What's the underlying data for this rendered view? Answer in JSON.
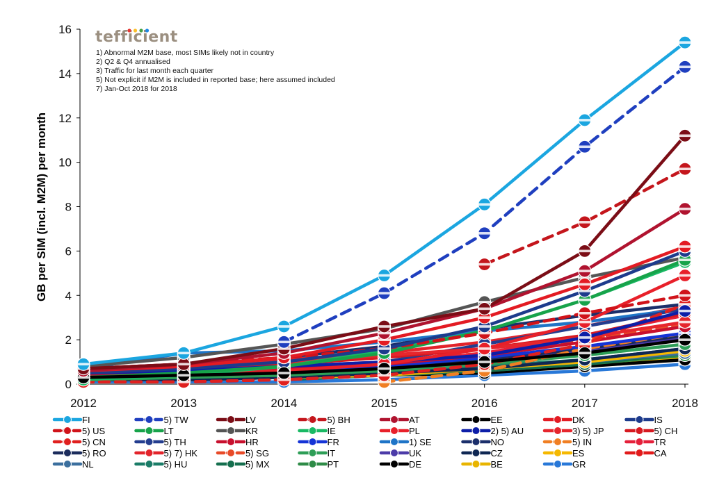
{
  "brand": {
    "name": "tefficient",
    "dot_colors": [
      "#e53935",
      "#fbc02d",
      "#43a047",
      "#1e88e5"
    ]
  },
  "notes": [
    "1) Abnormal M2M base, most SIMs likely not in country",
    "2) Q2 & Q4 annualised",
    "3) Traffic for last month each quarter",
    "5) Not explicit if M2M is included in reported base; here assumed included",
    "7) Jan-Oct 2018 for 2018"
  ],
  "chart_data": {
    "type": "line",
    "title": "",
    "xlabel": "",
    "ylabel": "GB per SIM (incl. M2M) per month",
    "x": [
      "2012",
      "2013",
      "2014",
      "2015",
      "2016",
      "2017",
      "2018"
    ],
    "ylim": [
      0,
      16
    ],
    "yticks": [
      0,
      2,
      4,
      6,
      8,
      10,
      12,
      14,
      16
    ],
    "grid": false,
    "legend_position": "bottom",
    "series": [
      {
        "name": "FI",
        "color": "#1ba6e0",
        "dashed": false,
        "values": [
          0.9,
          1.4,
          2.6,
          4.9,
          8.1,
          11.9,
          15.4
        ]
      },
      {
        "name": "5) TW",
        "color": "#1f3fbf",
        "dashed": true,
        "values": [
          null,
          null,
          1.9,
          4.1,
          6.8,
          10.7,
          14.3
        ]
      },
      {
        "name": "LV",
        "color": "#7b0d16",
        "dashed": false,
        "values": [
          0.7,
          0.9,
          1.6,
          2.6,
          3.4,
          6.0,
          11.2
        ]
      },
      {
        "name": "5) BH",
        "color": "#c4161c",
        "dashed": true,
        "values": [
          null,
          null,
          null,
          null,
          5.4,
          7.3,
          9.7
        ]
      },
      {
        "name": "AT",
        "color": "#b0132f",
        "dashed": false,
        "values": [
          0.6,
          0.9,
          1.4,
          2.3,
          3.4,
          5.1,
          7.9
        ]
      },
      {
        "name": "EE",
        "color": "#000000",
        "dashed": false,
        "values": [
          0.3,
          0.4,
          0.5,
          0.7,
          1.0,
          1.4,
          2.0
        ]
      },
      {
        "name": "DK",
        "color": "#e31b23",
        "dashed": false,
        "values": [
          0.6,
          0.8,
          1.2,
          2.0,
          3.0,
          4.5,
          6.2
        ]
      },
      {
        "name": "IS",
        "color": "#1d3b8c",
        "dashed": false,
        "values": [
          0.5,
          0.7,
          1.0,
          1.6,
          2.6,
          4.2,
          6.0
        ]
      },
      {
        "name": "5) US",
        "color": "#d0131a",
        "dashed": true,
        "values": [
          0.7,
          0.9,
          1.2,
          1.6,
          2.3,
          3.2,
          4.0
        ]
      },
      {
        "name": "LT",
        "color": "#17a34a",
        "dashed": false,
        "values": [
          0.3,
          0.5,
          0.8,
          1.4,
          2.4,
          3.8,
          5.6
        ]
      },
      {
        "name": "KR",
        "color": "#555555",
        "dashed": false,
        "values": [
          0.8,
          1.2,
          1.8,
          2.5,
          3.7,
          4.8,
          5.7
        ]
      },
      {
        "name": "IE",
        "color": "#19b964",
        "dashed": false,
        "values": [
          0.2,
          0.4,
          0.8,
          1.5,
          2.4,
          3.8,
          5.5
        ]
      },
      {
        "name": "PL",
        "color": "#e8202a",
        "dashed": false,
        "values": [
          0.3,
          0.4,
          0.6,
          0.9,
          1.6,
          2.8,
          4.9
        ]
      },
      {
        "name": "2) 5) AU",
        "color": "#0d1ea8",
        "dashed": false,
        "values": [
          0.5,
          0.6,
          0.8,
          1.0,
          1.3,
          2.1,
          3.3
        ]
      },
      {
        "name": "3) 5) JP",
        "color": "#e6262d",
        "dashed": false,
        "values": [
          0.6,
          0.8,
          1.0,
          1.3,
          1.6,
          2.1,
          2.8
        ]
      },
      {
        "name": "5) CH",
        "color": "#d71920",
        "dashed": false,
        "values": [
          0.6,
          0.7,
          0.9,
          1.2,
          1.6,
          2.2,
          3.2
        ]
      },
      {
        "name": "5) CN",
        "color": "#e0201f",
        "dashed": true,
        "values": [
          0.1,
          0.1,
          0.2,
          0.4,
          0.9,
          1.8,
          3.6
        ]
      },
      {
        "name": "5) TH",
        "color": "#233d8f",
        "dashed": false,
        "values": [
          null,
          null,
          null,
          1.0,
          1.8,
          2.6,
          3.4
        ]
      },
      {
        "name": "HR",
        "color": "#c8102e",
        "dashed": false,
        "values": [
          0.4,
          0.5,
          0.7,
          0.9,
          1.3,
          1.9,
          2.6
        ]
      },
      {
        "name": "FR",
        "color": "#1534d6",
        "dashed": false,
        "values": [
          0.4,
          0.5,
          0.6,
          0.8,
          1.2,
          1.7,
          2.3
        ]
      },
      {
        "name": "1) SE",
        "color": "#1e74c7",
        "dashed": false,
        "values": [
          0.7,
          1.4,
          1.5,
          1.9,
          2.4,
          2.8,
          3.4
        ]
      },
      {
        "name": "NO",
        "color": "#1b2f6b",
        "dashed": false,
        "values": [
          0.5,
          0.8,
          1.2,
          1.7,
          2.5,
          3.1,
          3.6
        ]
      },
      {
        "name": "5) IN",
        "color": "#f07f23",
        "dashed": true,
        "values": [
          null,
          null,
          null,
          0.1,
          0.6,
          1.6,
          2.3
        ]
      },
      {
        "name": "TR",
        "color": "#e5203a",
        "dashed": false,
        "values": [
          0.3,
          0.4,
          0.6,
          0.9,
          1.4,
          2.2,
          3.1
        ]
      },
      {
        "name": "5) RO",
        "color": "#1b2c5c",
        "dashed": false,
        "values": [
          0.4,
          0.5,
          0.6,
          0.8,
          1.1,
          1.6,
          2.2
        ]
      },
      {
        "name": "5) 7) HK",
        "color": "#e3242b",
        "dashed": false,
        "values": [
          0.7,
          0.9,
          1.1,
          1.4,
          1.9,
          2.6,
          3.5
        ]
      },
      {
        "name": "5) SG",
        "color": "#e84a28",
        "dashed": true,
        "values": [
          0.5,
          0.6,
          0.8,
          1.0,
          1.4,
          2.0,
          2.7
        ]
      },
      {
        "name": "IT",
        "color": "#2e9e57",
        "dashed": false,
        "values": [
          0.2,
          0.3,
          0.4,
          0.6,
          0.9,
          1.3,
          1.8
        ]
      },
      {
        "name": "UK",
        "color": "#4c3ba8",
        "dashed": false,
        "values": [
          0.3,
          0.4,
          0.5,
          0.7,
          1.0,
          1.5,
          2.1
        ]
      },
      {
        "name": "CZ",
        "color": "#0f2753",
        "dashed": false,
        "values": [
          0.2,
          0.2,
          0.3,
          0.5,
          0.7,
          1.1,
          1.6
        ]
      },
      {
        "name": "ES",
        "color": "#f5b800",
        "dashed": false,
        "values": [
          0.2,
          0.2,
          0.3,
          0.4,
          0.7,
          1.0,
          1.5
        ]
      },
      {
        "name": "CA",
        "color": "#e21b1b",
        "dashed": false,
        "values": [
          0.4,
          0.5,
          0.6,
          0.8,
          1.1,
          1.6,
          2.2
        ]
      },
      {
        "name": "NL",
        "color": "#3b6f9e",
        "dashed": false,
        "values": [
          0.3,
          0.3,
          0.4,
          0.5,
          0.7,
          1.0,
          1.4
        ]
      },
      {
        "name": "5) HU",
        "color": "#1a7c67",
        "dashed": false,
        "values": [
          0.2,
          0.3,
          0.4,
          0.6,
          0.8,
          1.1,
          1.6
        ]
      },
      {
        "name": "5) MX",
        "color": "#156f4e",
        "dashed": false,
        "values": [
          null,
          null,
          0.2,
          0.4,
          0.6,
          0.9,
          1.4
        ]
      },
      {
        "name": "PT",
        "color": "#2e8b47",
        "dashed": false,
        "values": [
          0.2,
          0.2,
          0.3,
          0.4,
          0.6,
          0.9,
          1.3
        ]
      },
      {
        "name": "DE",
        "color": "#000000",
        "dashed": false,
        "values": [
          0.2,
          0.2,
          0.3,
          0.4,
          0.5,
          0.8,
          1.1
        ]
      },
      {
        "name": "BE",
        "color": "#e8b400",
        "dashed": false,
        "values": [
          0.2,
          0.2,
          0.3,
          0.4,
          0.6,
          0.9,
          1.2
        ]
      },
      {
        "name": "GR",
        "color": "#2878d8",
        "dashed": false,
        "values": [
          0.1,
          0.1,
          0.1,
          0.2,
          0.4,
          0.6,
          0.9
        ]
      }
    ]
  }
}
